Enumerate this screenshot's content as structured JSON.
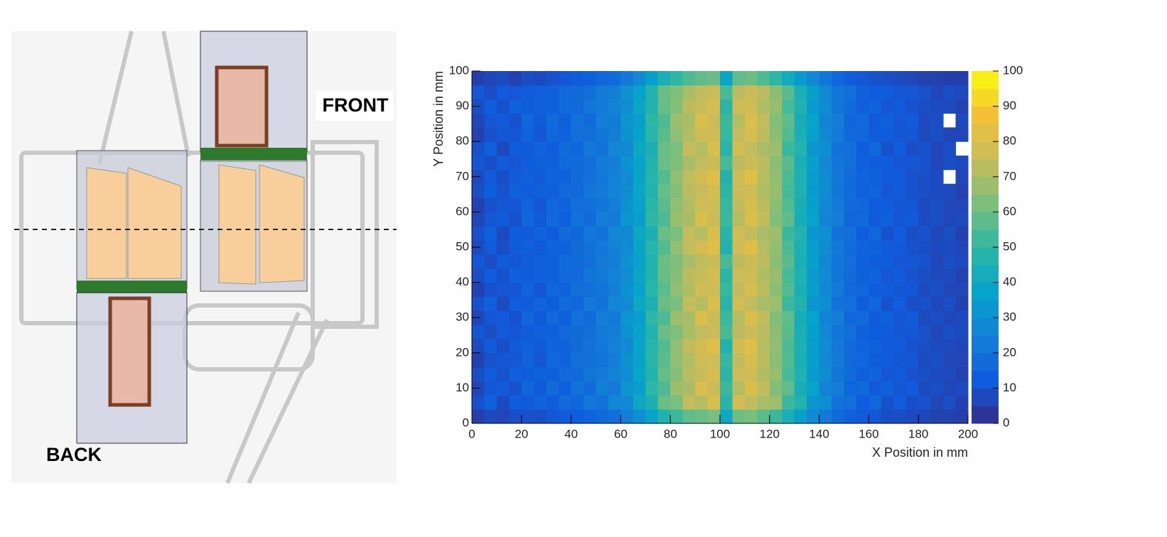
{
  "figure": {
    "front_label": "FRONT",
    "back_label": "BACK"
  },
  "chart_data": {
    "type": "heatmap",
    "x_label": "X Position in mm",
    "y_label": "Y Position in mm",
    "xlim": [
      0,
      200
    ],
    "ylim": [
      0,
      100
    ],
    "zlim": [
      0,
      100
    ],
    "xticks": [
      0,
      20,
      40,
      60,
      80,
      100,
      120,
      140,
      160,
      180,
      200
    ],
    "yticks": [
      0,
      10,
      20,
      30,
      40,
      50,
      60,
      70,
      80,
      90,
      100
    ],
    "zticks": [
      0,
      10,
      20,
      30,
      40,
      50,
      60,
      70,
      80,
      90,
      100
    ],
    "colormap": [
      "#352a87",
      "#0f5cdd",
      "#1481d6",
      "#06a4ca",
      "#2eb7a4",
      "#7cbf7b",
      "#c7bc5b",
      "#f4c136",
      "#f9fb0e"
    ],
    "values": [
      [
        5,
        8,
        7,
        9,
        10,
        9,
        11,
        12,
        13,
        15,
        17,
        19,
        24,
        30,
        38,
        46,
        52,
        58,
        60,
        62,
        40,
        60,
        62,
        57,
        52,
        44,
        36,
        28,
        22,
        17,
        14,
        12,
        11,
        9,
        9,
        8,
        7,
        6,
        6,
        5
      ],
      [
        10,
        14,
        8,
        13,
        12,
        15,
        13,
        18,
        16,
        22,
        20,
        27,
        28,
        40,
        45,
        60,
        62,
        75,
        72,
        80,
        48,
        78,
        74,
        70,
        68,
        52,
        47,
        33,
        30,
        20,
        19,
        13,
        16,
        10,
        13,
        9,
        10,
        7,
        9,
        6
      ],
      [
        7,
        11,
        12,
        10,
        16,
        12,
        17,
        14,
        20,
        18,
        24,
        23,
        32,
        36,
        50,
        55,
        68,
        70,
        80,
        76,
        52,
        72,
        80,
        74,
        63,
        58,
        43,
        37,
        26,
        24,
        16,
        17,
        12,
        14,
        11,
        12,
        8,
        9,
        7,
        8
      ],
      [
        9,
        13,
        10,
        14,
        13,
        14,
        14,
        17,
        17,
        21,
        23,
        26,
        29,
        39,
        47,
        59,
        64,
        73,
        75,
        79,
        49,
        76,
        77,
        71,
        67,
        54,
        46,
        34,
        29,
        21,
        18,
        14,
        15,
        11,
        12,
        10,
        9,
        8,
        8,
        6
      ],
      [
        6,
        10,
        11,
        11,
        15,
        11,
        16,
        15,
        19,
        19,
        21,
        24,
        31,
        37,
        49,
        57,
        66,
        71,
        77,
        77,
        51,
        74,
        79,
        73,
        65,
        56,
        44,
        36,
        27,
        23,
        17,
        16,
        13,
        13,
        11,
        11,
        8,
        9,
        7,
        7
      ],
      [
        8,
        12,
        9,
        12,
        14,
        12,
        15,
        15,
        18,
        20,
        22,
        25,
        28,
        38,
        48,
        56,
        66,
        74,
        78,
        82,
        46,
        77,
        82,
        72,
        66,
        55,
        45,
        35,
        29,
        22,
        18,
        15,
        14,
        12,
        12,
        10,
        9,
        8,
        8,
        7
      ],
      [
        11,
        9,
        12,
        11,
        13,
        14,
        14,
        17,
        18,
        19,
        23,
        24,
        31,
        37,
        47,
        60,
        63,
        70,
        74,
        76,
        54,
        73,
        76,
        73,
        65,
        57,
        44,
        36,
        27,
        21,
        19,
        14,
        13,
        13,
        11,
        11,
        10,
        7,
        9,
        8
      ],
      [
        7,
        11,
        12,
        10,
        16,
        12,
        17,
        14,
        20,
        18,
        24,
        23,
        32,
        36,
        50,
        55,
        68,
        70,
        80,
        76,
        52,
        72,
        80,
        74,
        63,
        58,
        43,
        37,
        26,
        24,
        16,
        17,
        12,
        14,
        11,
        12,
        8,
        9,
        7,
        8
      ],
      [
        10,
        14,
        8,
        13,
        12,
        15,
        13,
        18,
        16,
        22,
        20,
        27,
        28,
        40,
        45,
        60,
        62,
        75,
        72,
        80,
        48,
        78,
        74,
        70,
        68,
        52,
        47,
        33,
        30,
        20,
        19,
        13,
        16,
        10,
        13,
        9,
        10,
        7,
        9,
        6
      ],
      [
        6,
        10,
        11,
        11,
        15,
        11,
        16,
        15,
        19,
        19,
        21,
        24,
        31,
        37,
        49,
        57,
        66,
        71,
        77,
        77,
        51,
        74,
        79,
        73,
        65,
        56,
        44,
        36,
        27,
        23,
        17,
        16,
        13,
        13,
        11,
        11,
        8,
        9,
        7,
        7
      ],
      [
        9,
        13,
        10,
        14,
        13,
        14,
        14,
        17,
        17,
        21,
        23,
        26,
        29,
        39,
        47,
        59,
        64,
        73,
        75,
        79,
        49,
        76,
        77,
        71,
        67,
        54,
        46,
        34,
        29,
        21,
        18,
        14,
        15,
        11,
        12,
        10,
        9,
        8,
        8,
        6
      ],
      [
        11,
        9,
        12,
        11,
        13,
        14,
        14,
        17,
        18,
        19,
        23,
        24,
        31,
        37,
        47,
        60,
        63,
        70,
        74,
        76,
        54,
        73,
        76,
        73,
        65,
        57,
        44,
        36,
        27,
        21,
        19,
        14,
        13,
        13,
        11,
        11,
        10,
        7,
        9,
        8
      ],
      [
        8,
        12,
        9,
        12,
        14,
        12,
        15,
        15,
        18,
        20,
        22,
        25,
        28,
        38,
        48,
        56,
        66,
        74,
        78,
        82,
        46,
        77,
        82,
        72,
        66,
        55,
        45,
        35,
        29,
        22,
        18,
        15,
        14,
        12,
        12,
        10,
        9,
        8,
        8,
        7
      ],
      [
        10,
        14,
        8,
        13,
        12,
        15,
        13,
        18,
        16,
        22,
        20,
        27,
        28,
        40,
        45,
        60,
        62,
        75,
        72,
        80,
        48,
        78,
        74,
        70,
        68,
        52,
        47,
        33,
        30,
        20,
        19,
        13,
        16,
        10,
        13,
        9,
        10,
        7,
        9,
        6
      ],
      [
        7,
        11,
        12,
        10,
        16,
        12,
        17,
        14,
        20,
        18,
        24,
        23,
        32,
        36,
        50,
        55,
        68,
        70,
        80,
        76,
        52,
        72,
        80,
        74,
        63,
        58,
        43,
        37,
        26,
        24,
        16,
        17,
        12,
        14,
        11,
        12,
        8,
        9,
        7,
        8
      ],
      [
        6,
        10,
        11,
        11,
        15,
        11,
        16,
        15,
        19,
        19,
        21,
        24,
        31,
        37,
        49,
        57,
        66,
        71,
        77,
        77,
        51,
        74,
        79,
        73,
        65,
        56,
        44,
        36,
        27,
        23,
        17,
        16,
        13,
        13,
        11,
        11,
        8,
        9,
        7,
        7
      ],
      [
        9,
        13,
        10,
        14,
        13,
        14,
        14,
        17,
        17,
        21,
        23,
        26,
        29,
        39,
        47,
        59,
        64,
        73,
        75,
        79,
        49,
        76,
        77,
        71,
        67,
        54,
        46,
        34,
        29,
        21,
        18,
        14,
        15,
        11,
        12,
        10,
        9,
        8,
        8,
        6
      ],
      [
        8,
        12,
        9,
        12,
        14,
        12,
        15,
        15,
        18,
        20,
        22,
        25,
        28,
        38,
        48,
        56,
        66,
        74,
        78,
        82,
        46,
        77,
        82,
        72,
        66,
        55,
        45,
        35,
        29,
        22,
        18,
        15,
        14,
        12,
        12,
        10,
        9,
        8,
        null,
        7
      ],
      [
        11,
        9,
        12,
        11,
        13,
        14,
        14,
        17,
        18,
        19,
        23,
        24,
        31,
        37,
        47,
        60,
        63,
        70,
        74,
        76,
        54,
        73,
        76,
        73,
        65,
        57,
        44,
        36,
        27,
        21,
        19,
        14,
        13,
        13,
        11,
        11,
        10,
        7,
        9,
        8
      ],
      [
        10,
        14,
        8,
        13,
        12,
        15,
        13,
        18,
        16,
        22,
        20,
        27,
        28,
        40,
        45,
        60,
        62,
        75,
        72,
        80,
        48,
        78,
        74,
        70,
        68,
        52,
        47,
        33,
        30,
        20,
        19,
        13,
        16,
        10,
        13,
        9,
        10,
        7,
        9,
        null
      ],
      [
        6,
        10,
        11,
        11,
        15,
        11,
        16,
        15,
        19,
        19,
        21,
        24,
        31,
        37,
        49,
        57,
        66,
        71,
        77,
        77,
        51,
        74,
        79,
        73,
        65,
        56,
        44,
        36,
        27,
        23,
        17,
        16,
        13,
        13,
        11,
        11,
        8,
        9,
        7,
        7
      ],
      [
        7,
        11,
        12,
        10,
        16,
        12,
        17,
        14,
        20,
        18,
        24,
        23,
        32,
        36,
        50,
        55,
        68,
        70,
        80,
        76,
        52,
        72,
        80,
        74,
        63,
        58,
        43,
        37,
        26,
        24,
        16,
        17,
        12,
        14,
        11,
        12,
        8,
        9,
        null,
        8
      ],
      [
        9,
        13,
        10,
        14,
        13,
        14,
        14,
        17,
        17,
        21,
        23,
        26,
        29,
        39,
        47,
        59,
        64,
        73,
        75,
        79,
        49,
        76,
        77,
        71,
        67,
        54,
        46,
        34,
        29,
        21,
        18,
        14,
        15,
        11,
        12,
        10,
        9,
        8,
        8,
        6
      ],
      [
        11,
        9,
        12,
        11,
        13,
        14,
        14,
        17,
        18,
        19,
        23,
        24,
        31,
        37,
        47,
        60,
        63,
        70,
        74,
        76,
        54,
        73,
        76,
        73,
        65,
        57,
        44,
        36,
        27,
        21,
        19,
        14,
        13,
        13,
        11,
        11,
        10,
        7,
        9,
        8
      ],
      [
        5,
        7,
        8,
        6,
        9,
        8,
        10,
        11,
        12,
        14,
        16,
        18,
        22,
        28,
        36,
        44,
        50,
        55,
        58,
        60,
        38,
        58,
        60,
        55,
        50,
        42,
        34,
        27,
        21,
        16,
        13,
        11,
        10,
        9,
        8,
        7,
        6,
        6,
        5,
        5
      ]
    ]
  }
}
